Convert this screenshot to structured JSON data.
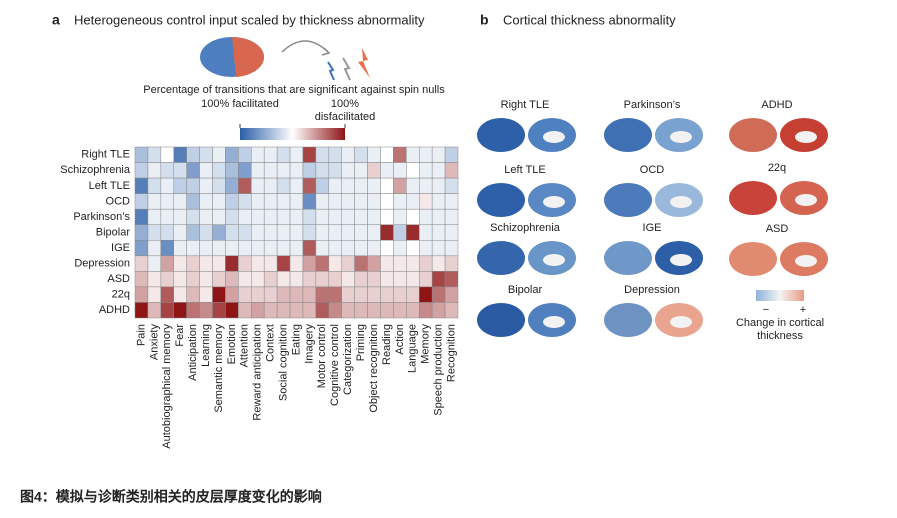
{
  "chart_data": {
    "type": "heatmap",
    "rows": [
      "Right TLE",
      "Schizophrenia",
      "Left TLE",
      "OCD",
      "Parkinson’s",
      "Bipolar",
      "IGE",
      "Depression",
      "ASD",
      "22q",
      "ADHD"
    ],
    "columns": [
      "Pain",
      "Anxiety",
      "Autobiographical memory",
      "Fear",
      "Anticipation",
      "Learning",
      "Semantic memory",
      "Emotion",
      "Attention",
      "Reward anticipation",
      "Context",
      "Social cognition",
      "Eating",
      "Imagery",
      "Motor control",
      "Cognitive control",
      "Categorization",
      "Priming",
      "Object recognition",
      "Reading",
      "Action",
      "Language",
      "Memory",
      "Speech production",
      "Recognition"
    ],
    "values": [
      [
        -40,
        -20,
        0,
        -80,
        -30,
        -20,
        -10,
        -50,
        -30,
        -10,
        -10,
        -20,
        -10,
        80,
        -20,
        -20,
        -10,
        -20,
        -10,
        0,
        60,
        -10,
        -10,
        -10,
        -30
      ],
      [
        -30,
        -10,
        -20,
        -20,
        -60,
        -10,
        -20,
        -40,
        -60,
        -10,
        -10,
        -10,
        -10,
        -30,
        -20,
        -20,
        -10,
        -10,
        20,
        -10,
        -10,
        0,
        -10,
        -10,
        30
      ],
      [
        -80,
        -20,
        -10,
        -30,
        -30,
        -10,
        -20,
        -50,
        70,
        -10,
        -10,
        -20,
        -10,
        70,
        -30,
        -10,
        -10,
        -10,
        -10,
        0,
        40,
        -10,
        -10,
        -10,
        -20
      ],
      [
        -30,
        -10,
        -10,
        -10,
        -40,
        -10,
        -10,
        -30,
        -20,
        -10,
        -10,
        -10,
        -10,
        -70,
        -10,
        -10,
        -10,
        -10,
        -10,
        0,
        -10,
        -10,
        10,
        -10,
        -10
      ],
      [
        -80,
        -10,
        -10,
        -10,
        -20,
        -10,
        -10,
        -20,
        -10,
        -10,
        -10,
        -10,
        -10,
        -20,
        -10,
        -10,
        -10,
        -10,
        -10,
        0,
        -10,
        0,
        -10,
        -10,
        -10
      ],
      [
        -50,
        -20,
        -20,
        -10,
        -40,
        -20,
        -50,
        -20,
        -20,
        -10,
        -10,
        -10,
        -10,
        -20,
        -10,
        -10,
        -10,
        -10,
        -10,
        90,
        -30,
        90,
        -10,
        -10,
        -10
      ],
      [
        -60,
        -10,
        -70,
        -10,
        -10,
        -10,
        -10,
        -10,
        -10,
        -10,
        -10,
        -10,
        -10,
        70,
        -10,
        -10,
        -10,
        -10,
        -10,
        0,
        -10,
        0,
        -10,
        -10,
        -10
      ],
      [
        20,
        -10,
        40,
        10,
        20,
        10,
        10,
        90,
        20,
        10,
        10,
        80,
        10,
        40,
        60,
        10,
        20,
        60,
        40,
        10,
        10,
        10,
        20,
        10,
        20
      ],
      [
        30,
        10,
        20,
        10,
        20,
        10,
        20,
        30,
        10,
        10,
        20,
        10,
        10,
        20,
        20,
        20,
        10,
        20,
        20,
        10,
        10,
        10,
        20,
        80,
        70
      ],
      [
        40,
        10,
        70,
        10,
        30,
        10,
        100,
        40,
        20,
        20,
        20,
        30,
        30,
        30,
        60,
        60,
        20,
        20,
        20,
        20,
        20,
        20,
        100,
        60,
        40
      ],
      [
        100,
        30,
        80,
        100,
        60,
        50,
        80,
        100,
        30,
        40,
        30,
        30,
        30,
        30,
        70,
        50,
        30,
        30,
        30,
        30,
        30,
        30,
        50,
        40,
        30
      ]
    ],
    "colors": [
      "#2a5ea8",
      "#ffffff",
      "#8e1416"
    ],
    "colorbar": {
      "lim": [
        -100,
        100
      ],
      "ticks": [
        {
          "value": -100,
          "label": "100% facilitated"
        },
        {
          "value": 100,
          "label": "100% disfacilitated"
        }
      ]
    }
  },
  "panel_a": {
    "letter": "a",
    "title": "Heterogeneous control input scaled by thickness abnormality",
    "subtitle": "Percentage of transitions that are significant against spin nulls"
  },
  "panel_b": {
    "letter": "b",
    "title": "Cortical thickness abnormality",
    "groups": [
      "Right TLE",
      "Left TLE",
      "Schizophrenia",
      "Bipolar",
      "Parkinson’s",
      "OCD",
      "IGE",
      "Depression",
      "ADHD",
      "22q",
      "ASD"
    ],
    "colorbar": {
      "low": "−",
      "high": "+",
      "label": "Change in cortical thickness"
    }
  },
  "caption": "图4：模拟与诊断类别相关的皮层厚度变化的影响"
}
